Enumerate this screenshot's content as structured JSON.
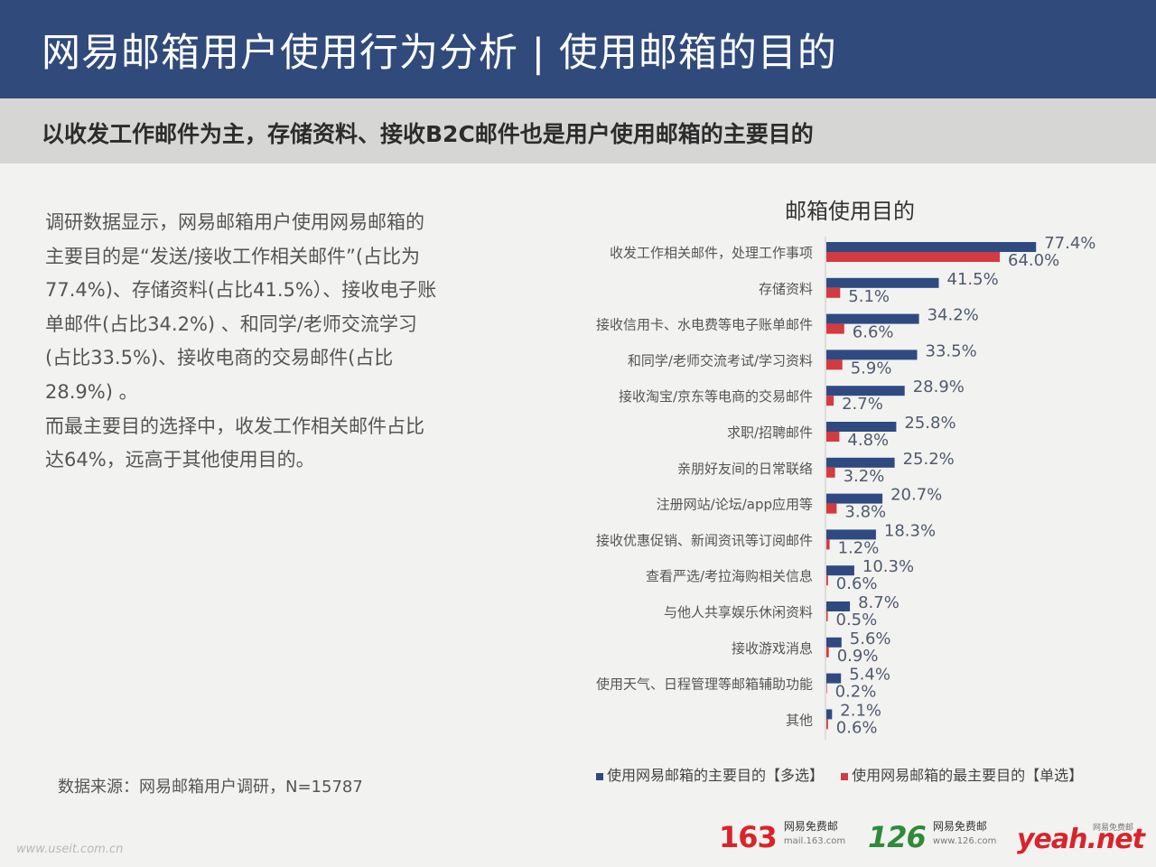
{
  "header": {
    "title": "网易邮箱用户使用行为分析 | 使用邮箱的目的",
    "subtitle": "以收发工作邮件为主，存储资料、接收B2C邮件也是用户使用邮箱的主要目的"
  },
  "summary": {
    "paragraph1": "调研数据显示，网易邮箱用户使用网易邮箱的主要目的是“发送/接收工作相关邮件”(占比为77.4%)、存储资料(占比41.5%）、接收电子账单邮件(占比34.2%) 、和同学/老师交流学习 (占比33.5%)、接收电商的交易邮件(占比28.9%) 。",
    "paragraph2": "而最主要目的选择中，收发工作相关邮件占比达64%，远高于其他使用目的。"
  },
  "source": "数据来源：网易邮箱用户调研，N=15787",
  "chart_data": {
    "type": "bar",
    "orientation": "horizontal",
    "title": "邮箱使用目的",
    "categories": [
      "收发工作相关邮件，处理工作事项",
      "存储资料",
      "接收信用卡、水电费等电子账单邮件",
      "和同学/老师交流考试/学习资料",
      "接收淘宝/京东等电商的交易邮件",
      "求职/招聘邮件",
      "亲朋好友间的日常联络",
      "注册网站/论坛/app应用等",
      "接收优惠促销、新闻资讯等订阅邮件",
      "查看严选/考拉海购相关信息",
      "与他人共享娱乐休闲资料",
      "接收游戏消息",
      "使用天气、日程管理等邮箱辅助功能",
      "其他"
    ],
    "series": [
      {
        "name": "使用网易邮箱的主要目的【多选】",
        "color": "#2f4a80",
        "values": [
          77.4,
          41.5,
          34.2,
          33.5,
          28.9,
          25.8,
          25.2,
          20.7,
          18.3,
          10.3,
          8.7,
          5.6,
          5.4,
          2.1
        ]
      },
      {
        "name": "使用网易邮箱的最主要目的【单选】",
        "color": "#d43a3f",
        "values": [
          64.0,
          5.1,
          6.6,
          5.9,
          2.7,
          4.8,
          3.2,
          3.8,
          1.2,
          0.6,
          0.5,
          0.9,
          0.2,
          0.6
        ]
      }
    ],
    "value_suffix": "%",
    "legend_position": "bottom",
    "grid": false
  },
  "footer": {
    "logos": [
      {
        "num": "163",
        "name": "网易免费邮",
        "domain": "mail.163.com",
        "color": "#d8242b"
      },
      {
        "num": "126",
        "name": "网易免费邮",
        "domain": "www.126.com",
        "color": "#2f8a3a"
      },
      {
        "num": "yeah.net",
        "name": "网易免费邮",
        "color": "#d8242b"
      }
    ],
    "watermark": "www.useit.com.cn"
  }
}
